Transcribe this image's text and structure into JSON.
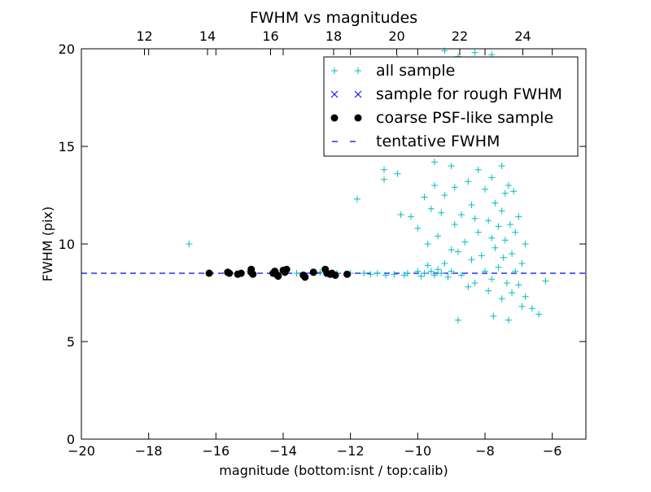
{
  "chart_data": {
    "type": "scatter",
    "title": "FWHM vs magnitudes",
    "xlabel": "magnitude (bottom:isnt / top:calib)",
    "ylabel": "FWHM (pix)",
    "xlim": [
      -20,
      -5
    ],
    "ylim": [
      0,
      20
    ],
    "top_xlim": [
      10,
      26
    ],
    "x_ticks": [
      -20,
      -18,
      -16,
      -14,
      -12,
      -10,
      -8,
      -6
    ],
    "x_tick_labels": [
      "−20",
      "−18",
      "−16",
      "−14",
      "−12",
      "−10",
      "−8",
      "−6"
    ],
    "y_ticks": [
      0,
      5,
      10,
      15,
      20
    ],
    "y_tick_labels": [
      "0",
      "5",
      "10",
      "15",
      "20"
    ],
    "top_x_ticks": [
      12,
      14,
      16,
      18,
      20,
      22,
      24
    ],
    "top_x_tick_labels": [
      "12",
      "14",
      "16",
      "18",
      "20",
      "22",
      "24"
    ],
    "grid": false,
    "legend_position": "top-right",
    "legend": {
      "all_sample": "all sample",
      "rough_sample": "sample for rough FWHM",
      "psf_sample": "coarse PSF-like sample",
      "tentative": "tentative FWHM"
    },
    "colors": {
      "all_sample": "#00BFBF",
      "rough_sample": "#0000FF",
      "psf_sample": "#000000",
      "tentative": "#0000FF"
    },
    "series": [
      {
        "name": "all sample",
        "marker": "+",
        "points": [
          [
            -16.8,
            10.0
          ],
          [
            -16.2,
            8.5
          ],
          [
            -15.6,
            8.55
          ],
          [
            -15.4,
            8.5
          ],
          [
            -15.0,
            8.6
          ],
          [
            -14.3,
            8.5
          ],
          [
            -13.6,
            8.5
          ],
          [
            -12.9,
            8.55
          ],
          [
            -12.4,
            8.5
          ],
          [
            -12.0,
            8.5
          ],
          [
            -11.8,
            12.3
          ],
          [
            -11.6,
            8.5
          ],
          [
            -11.4,
            8.45
          ],
          [
            -11.2,
            8.5
          ],
          [
            -11.0,
            13.3
          ],
          [
            -11.0,
            13.8
          ],
          [
            -10.95,
            8.4
          ],
          [
            -10.7,
            8.45
          ],
          [
            -10.6,
            13.6
          ],
          [
            -10.5,
            11.5
          ],
          [
            -10.4,
            8.4
          ],
          [
            -10.3,
            8.5
          ],
          [
            -10.2,
            11.4
          ],
          [
            -10.0,
            8.6
          ],
          [
            -10.0,
            10.8
          ],
          [
            -9.9,
            8.35
          ],
          [
            -9.8,
            8.5
          ],
          [
            -9.8,
            12.4
          ],
          [
            -9.7,
            10.0
          ],
          [
            -9.7,
            8.9
          ],
          [
            -9.6,
            8.6
          ],
          [
            -9.6,
            11.8
          ],
          [
            -9.5,
            14.2
          ],
          [
            -9.5,
            13.0
          ],
          [
            -9.5,
            8.4
          ],
          [
            -9.4,
            10.4
          ],
          [
            -9.4,
            8.7
          ],
          [
            -9.3,
            11.6
          ],
          [
            -9.3,
            8.5
          ],
          [
            -9.2,
            12.5
          ],
          [
            -9.2,
            9.0
          ],
          [
            -9.1,
            8.3
          ],
          [
            -9.0,
            14.0
          ],
          [
            -9.0,
            9.7
          ],
          [
            -9.0,
            8.6
          ],
          [
            -8.9,
            11.0
          ],
          [
            -8.9,
            12.9
          ],
          [
            -8.8,
            15.0
          ],
          [
            -8.8,
            6.1
          ],
          [
            -8.8,
            9.6
          ],
          [
            -8.7,
            8.4
          ],
          [
            -8.7,
            11.5
          ],
          [
            -8.6,
            10.1
          ],
          [
            -8.5,
            13.2
          ],
          [
            -8.5,
            7.8
          ],
          [
            -8.5,
            14.8
          ],
          [
            -8.4,
            9.2
          ],
          [
            -8.4,
            12.0
          ],
          [
            -8.3,
            11.3
          ],
          [
            -8.3,
            8.0
          ],
          [
            -8.2,
            13.8
          ],
          [
            -8.2,
            10.6
          ],
          [
            -8.1,
            16.5
          ],
          [
            -8.1,
            9.4
          ],
          [
            -8.0,
            12.8
          ],
          [
            -8.0,
            8.6
          ],
          [
            -7.9,
            11.2
          ],
          [
            -7.9,
            7.6
          ],
          [
            -7.9,
            14.9
          ],
          [
            -7.8,
            10.3
          ],
          [
            -7.8,
            13.4
          ],
          [
            -7.8,
            8.2
          ],
          [
            -7.75,
            6.3
          ],
          [
            -7.7,
            12.1
          ],
          [
            -7.7,
            9.8
          ],
          [
            -7.6,
            16.0
          ],
          [
            -7.6,
            8.8
          ],
          [
            -7.6,
            10.9
          ],
          [
            -7.5,
            14.0
          ],
          [
            -7.5,
            11.7
          ],
          [
            -7.5,
            7.2
          ],
          [
            -7.45,
            9.3
          ],
          [
            -7.4,
            12.6
          ],
          [
            -7.4,
            10.2
          ],
          [
            -7.35,
            8.0
          ],
          [
            -7.3,
            13.0
          ],
          [
            -7.3,
            6.1
          ],
          [
            -7.25,
            11.0
          ],
          [
            -7.2,
            9.5
          ],
          [
            -7.2,
            7.5
          ],
          [
            -7.15,
            12.7
          ],
          [
            -7.1,
            10.6
          ],
          [
            -7.1,
            8.6
          ],
          [
            -7.0,
            11.4
          ],
          [
            -7.0,
            7.9
          ],
          [
            -6.9,
            9.0
          ],
          [
            -6.9,
            6.8
          ],
          [
            -6.8,
            7.3
          ],
          [
            -6.8,
            10.0
          ],
          [
            -6.6,
            6.7
          ],
          [
            -6.4,
            6.4
          ],
          [
            -6.2,
            8.1
          ],
          [
            -9.2,
            19.9
          ],
          [
            -8.8,
            19.6
          ],
          [
            -8.3,
            19.8
          ],
          [
            -7.8,
            19.7
          ],
          [
            -8.6,
            17.5
          ],
          [
            -8.0,
            18.0
          ],
          [
            -7.6,
            17.0
          ],
          [
            -8.9,
            16.2
          ],
          [
            -9.1,
            18.4
          ],
          [
            -10.6,
            19.5
          ]
        ]
      },
      {
        "name": "coarse PSF-like sample",
        "marker": "o",
        "points": [
          [
            -16.2,
            8.5
          ],
          [
            -15.65,
            8.55
          ],
          [
            -15.6,
            8.5
          ],
          [
            -15.35,
            8.45
          ],
          [
            -15.25,
            8.5
          ],
          [
            -14.95,
            8.7
          ],
          [
            -14.95,
            8.55
          ],
          [
            -14.9,
            8.45
          ],
          [
            -14.3,
            8.5
          ],
          [
            -14.25,
            8.6
          ],
          [
            -14.2,
            8.45
          ],
          [
            -14.15,
            8.35
          ],
          [
            -14.0,
            8.65
          ],
          [
            -13.95,
            8.55
          ],
          [
            -13.9,
            8.7
          ],
          [
            -13.4,
            8.4
          ],
          [
            -13.35,
            8.3
          ],
          [
            -13.1,
            8.55
          ],
          [
            -12.75,
            8.7
          ],
          [
            -12.7,
            8.5
          ],
          [
            -12.6,
            8.45
          ],
          [
            -12.55,
            8.5
          ],
          [
            -12.45,
            8.4
          ],
          [
            -12.1,
            8.45
          ]
        ]
      }
    ],
    "tentative_fwhm": 8.5
  }
}
